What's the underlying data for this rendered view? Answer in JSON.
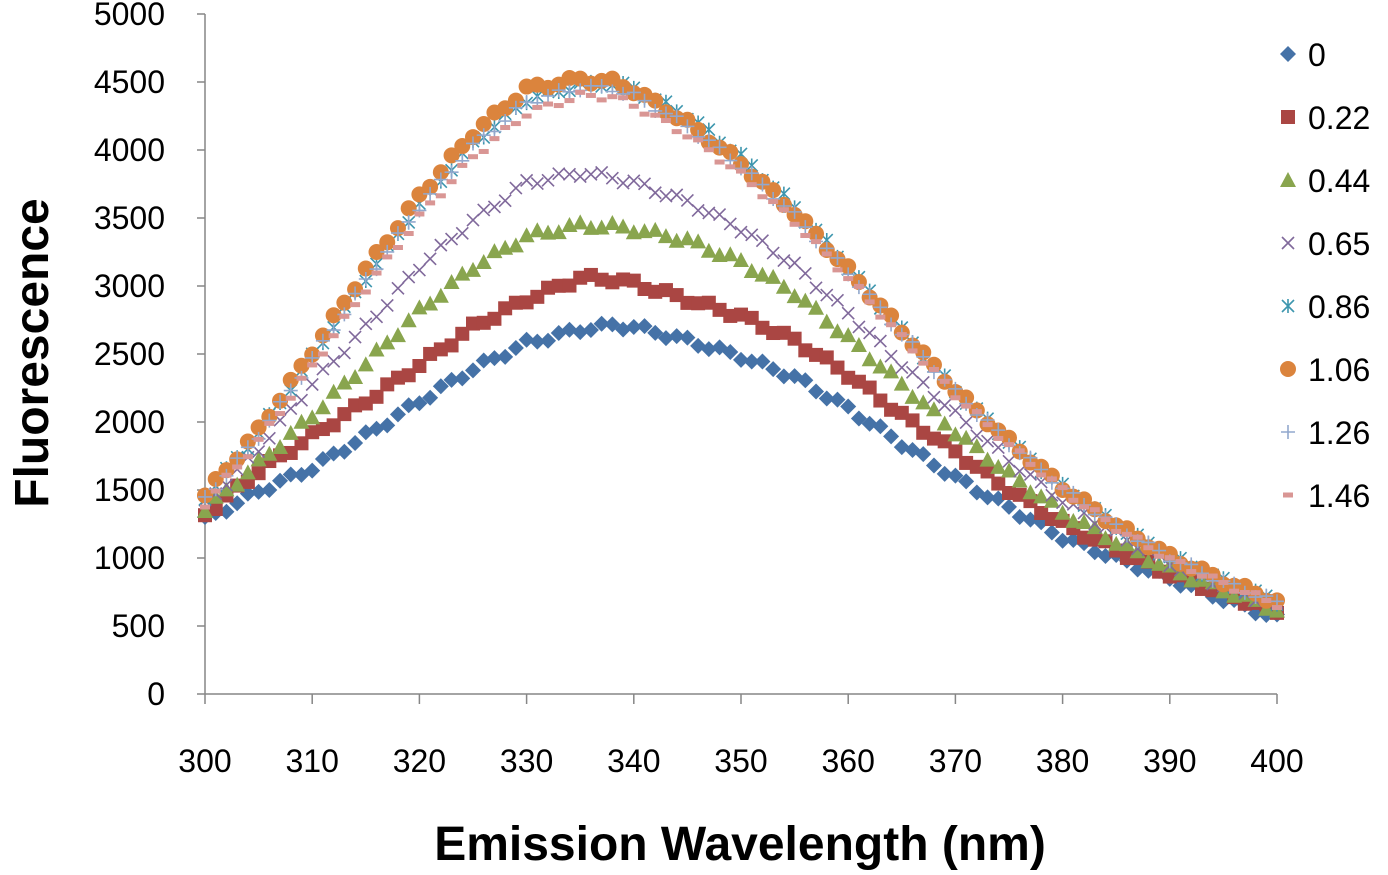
{
  "chart_data": {
    "type": "scatter",
    "title": "",
    "xlabel": "Emission Wavelength (nm)",
    "ylabel": "Fluorescence",
    "xlim": [
      300,
      400
    ],
    "ylim": [
      0,
      5000
    ],
    "xticks": [
      300,
      310,
      320,
      330,
      340,
      350,
      360,
      370,
      380,
      390,
      400
    ],
    "yticks": [
      0,
      500,
      1000,
      1500,
      2000,
      2500,
      3000,
      3500,
      4000,
      4500,
      5000
    ],
    "grid": false,
    "legend_position": "right",
    "x_range": {
      "start": 300,
      "end": 400,
      "step": 1
    },
    "series": [
      {
        "name": "0",
        "marker": "diamond",
        "color": "#4572A7",
        "anchors": [
          [
            300,
            1280
          ],
          [
            305,
            1490
          ],
          [
            310,
            1660
          ],
          [
            315,
            1900
          ],
          [
            320,
            2150
          ],
          [
            325,
            2390
          ],
          [
            330,
            2580
          ],
          [
            335,
            2680
          ],
          [
            338,
            2710
          ],
          [
            340,
            2700
          ],
          [
            345,
            2600
          ],
          [
            350,
            2480
          ],
          [
            355,
            2330
          ],
          [
            360,
            2100
          ],
          [
            365,
            1840
          ],
          [
            370,
            1590
          ],
          [
            375,
            1370
          ],
          [
            380,
            1150
          ],
          [
            385,
            1000
          ],
          [
            390,
            850
          ],
          [
            395,
            700
          ],
          [
            400,
            560
          ]
        ]
      },
      {
        "name": "0.22",
        "marker": "square",
        "color": "#AA4643",
        "anchors": [
          [
            300,
            1320
          ],
          [
            305,
            1640
          ],
          [
            310,
            1900
          ],
          [
            315,
            2150
          ],
          [
            320,
            2420
          ],
          [
            325,
            2700
          ],
          [
            330,
            2900
          ],
          [
            335,
            3060
          ],
          [
            338,
            3050
          ],
          [
            340,
            3020
          ],
          [
            345,
            2900
          ],
          [
            350,
            2780
          ],
          [
            355,
            2600
          ],
          [
            360,
            2350
          ],
          [
            365,
            2050
          ],
          [
            370,
            1780
          ],
          [
            375,
            1500
          ],
          [
            380,
            1250
          ],
          [
            385,
            1060
          ],
          [
            390,
            880
          ],
          [
            395,
            740
          ],
          [
            400,
            610
          ]
        ]
      },
      {
        "name": "0.44",
        "marker": "triangle",
        "color": "#89A54E",
        "anchors": [
          [
            300,
            1360
          ],
          [
            305,
            1700
          ],
          [
            310,
            2050
          ],
          [
            315,
            2430
          ],
          [
            320,
            2820
          ],
          [
            325,
            3140
          ],
          [
            330,
            3370
          ],
          [
            335,
            3450
          ],
          [
            338,
            3440
          ],
          [
            340,
            3420
          ],
          [
            345,
            3340
          ],
          [
            350,
            3180
          ],
          [
            355,
            2950
          ],
          [
            360,
            2620
          ],
          [
            365,
            2280
          ],
          [
            370,
            1930
          ],
          [
            375,
            1620
          ],
          [
            380,
            1340
          ],
          [
            385,
            1120
          ],
          [
            390,
            920
          ],
          [
            395,
            770
          ],
          [
            400,
            620
          ]
        ]
      },
      {
        "name": "0.65",
        "marker": "x",
        "color": "#80699B",
        "anchors": [
          [
            300,
            1400
          ],
          [
            305,
            1800
          ],
          [
            310,
            2280
          ],
          [
            315,
            2700
          ],
          [
            320,
            3140
          ],
          [
            325,
            3480
          ],
          [
            330,
            3760
          ],
          [
            335,
            3830
          ],
          [
            338,
            3800
          ],
          [
            340,
            3760
          ],
          [
            345,
            3620
          ],
          [
            350,
            3420
          ],
          [
            355,
            3150
          ],
          [
            360,
            2800
          ],
          [
            365,
            2420
          ],
          [
            370,
            2060
          ],
          [
            375,
            1720
          ],
          [
            380,
            1420
          ],
          [
            385,
            1180
          ],
          [
            390,
            960
          ],
          [
            395,
            800
          ],
          [
            400,
            650
          ]
        ]
      },
      {
        "name": "0.86",
        "marker": "asterisk",
        "color": "#3D96AE",
        "anchors": [
          [
            300,
            1450
          ],
          [
            305,
            1920
          ],
          [
            310,
            2480
          ],
          [
            315,
            3060
          ],
          [
            320,
            3600
          ],
          [
            325,
            4050
          ],
          [
            330,
            4370
          ],
          [
            335,
            4480
          ],
          [
            338,
            4490
          ],
          [
            340,
            4450
          ],
          [
            345,
            4250
          ],
          [
            350,
            3950
          ],
          [
            355,
            3580
          ],
          [
            360,
            3140
          ],
          [
            365,
            2670
          ],
          [
            370,
            2230
          ],
          [
            375,
            1860
          ],
          [
            380,
            1520
          ],
          [
            385,
            1240
          ],
          [
            390,
            1010
          ],
          [
            395,
            830
          ],
          [
            400,
            680
          ]
        ]
      },
      {
        "name": "1.06",
        "marker": "circle",
        "color": "#DB843D",
        "anchors": [
          [
            300,
            1460
          ],
          [
            305,
            1940
          ],
          [
            310,
            2520
          ],
          [
            315,
            3120
          ],
          [
            320,
            3660
          ],
          [
            325,
            4120
          ],
          [
            330,
            4450
          ],
          [
            335,
            4520
          ],
          [
            338,
            4500
          ],
          [
            340,
            4440
          ],
          [
            345,
            4200
          ],
          [
            350,
            3900
          ],
          [
            355,
            3540
          ],
          [
            360,
            3120
          ],
          [
            365,
            2670
          ],
          [
            370,
            2230
          ],
          [
            375,
            1860
          ],
          [
            380,
            1520
          ],
          [
            385,
            1240
          ],
          [
            390,
            1010
          ],
          [
            395,
            830
          ],
          [
            400,
            680
          ]
        ]
      },
      {
        "name": "1.26",
        "marker": "plus",
        "color": "#92A8CD",
        "anchors": [
          [
            300,
            1430
          ],
          [
            305,
            1900
          ],
          [
            310,
            2460
          ],
          [
            315,
            3040
          ],
          [
            320,
            3580
          ],
          [
            325,
            4030
          ],
          [
            330,
            4350
          ],
          [
            335,
            4460
          ],
          [
            338,
            4450
          ],
          [
            340,
            4400
          ],
          [
            345,
            4180
          ],
          [
            350,
            3880
          ],
          [
            355,
            3520
          ],
          [
            360,
            3100
          ],
          [
            365,
            2650
          ],
          [
            370,
            2220
          ],
          [
            375,
            1850
          ],
          [
            380,
            1510
          ],
          [
            385,
            1230
          ],
          [
            390,
            1000
          ],
          [
            395,
            820
          ],
          [
            400,
            670
          ]
        ]
      },
      {
        "name": "1.46",
        "marker": "dash",
        "color": "#D99694",
        "anchors": [
          [
            300,
            1400
          ],
          [
            305,
            1860
          ],
          [
            310,
            2410
          ],
          [
            315,
            2980
          ],
          [
            320,
            3510
          ],
          [
            325,
            3950
          ],
          [
            330,
            4270
          ],
          [
            335,
            4400
          ],
          [
            338,
            4390
          ],
          [
            340,
            4330
          ],
          [
            345,
            4110
          ],
          [
            350,
            3820
          ],
          [
            355,
            3470
          ],
          [
            360,
            3060
          ],
          [
            365,
            2620
          ],
          [
            370,
            2200
          ],
          [
            375,
            1830
          ],
          [
            380,
            1500
          ],
          [
            385,
            1220
          ],
          [
            390,
            990
          ],
          [
            395,
            810
          ],
          [
            400,
            660
          ]
        ]
      }
    ]
  }
}
